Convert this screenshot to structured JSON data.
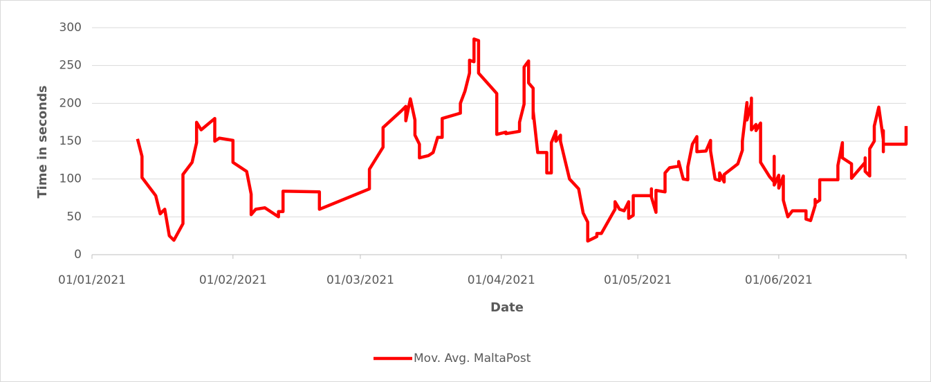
{
  "chart_data": {
    "type": "line",
    "y_label": "Time in seconds",
    "x_label": "Date",
    "xlim": [
      "01/01/2021",
      "29/06/2021"
    ],
    "xticks": [
      "01/01/2021",
      "01/02/2021",
      "01/03/2021",
      "01/04/2021",
      "01/05/2021",
      "01/06/2021"
    ],
    "ylim": [
      0,
      300
    ],
    "yticks": [
      0,
      50,
      100,
      150,
      200,
      250,
      300
    ],
    "grid": true,
    "legend": "bottom",
    "x": [
      "11/01/2021",
      "12/01/2021",
      "12/01/2021",
      "15/01/2021",
      "16/01/2021",
      "17/01/2021",
      "18/01/2021",
      "19/01/2021",
      "21/01/2021",
      "21/01/2021",
      "23/01/2021",
      "24/01/2021",
      "24/01/2021",
      "25/01/2021",
      "28/01/2021",
      "28/01/2021",
      "29/01/2021",
      "01/02/2021",
      "01/02/2021",
      "04/02/2021",
      "05/02/2021",
      "05/02/2021",
      "06/02/2021",
      "08/02/2021",
      "11/02/2021",
      "11/02/2021",
      "12/02/2021",
      "12/02/2021",
      "20/02/2021",
      "20/02/2021",
      "03/03/2021",
      "03/03/2021",
      "06/03/2021",
      "06/03/2021",
      "10/03/2021",
      "11/03/2021",
      "11/03/2021",
      "12/03/2021",
      "13/03/2021",
      "13/03/2021",
      "14/03/2021",
      "14/03/2021",
      "16/03/2021",
      "17/03/2021",
      "18/03/2021",
      "19/03/2021",
      "19/03/2021",
      "23/03/2021",
      "23/03/2021",
      "24/03/2021",
      "25/03/2021",
      "25/03/2021",
      "26/03/2021",
      "26/03/2021",
      "27/03/2021",
      "27/03/2021",
      "31/03/2021",
      "31/03/2021",
      "02/04/2021",
      "02/04/2021",
      "05/04/2021",
      "05/04/2021",
      "06/04/2021",
      "06/04/2021",
      "07/04/2021",
      "07/04/2021",
      "08/04/2021",
      "08/04/2021",
      "08/04/2021",
      "09/04/2021",
      "11/04/2021",
      "11/04/2021",
      "12/04/2021",
      "12/04/2021",
      "13/04/2021",
      "13/04/2021",
      "14/04/2021",
      "14/04/2021",
      "15/04/2021",
      "16/04/2021",
      "18/04/2021",
      "19/04/2021",
      "20/04/2021",
      "20/04/2021",
      "20/04/2021",
      "22/04/2021",
      "22/04/2021",
      "23/04/2021",
      "26/04/2021",
      "26/04/2021",
      "27/04/2021",
      "28/04/2021",
      "29/04/2021",
      "29/04/2021",
      "30/04/2021",
      "30/04/2021",
      "04/05/2021",
      "04/05/2021",
      "04/05/2021",
      "05/05/2021",
      "05/05/2021",
      "07/05/2021",
      "07/05/2021",
      "08/05/2021",
      "10/05/2021",
      "10/05/2021",
      "11/05/2021",
      "12/05/2021",
      "12/05/2021",
      "13/05/2021",
      "14/05/2021",
      "14/05/2021",
      "16/05/2021",
      "17/05/2021",
      "17/05/2021",
      "18/05/2021",
      "19/05/2021",
      "19/05/2021",
      "20/05/2021",
      "20/05/2021",
      "23/05/2021",
      "24/05/2021",
      "24/05/2021",
      "25/05/2021",
      "25/05/2021",
      "26/05/2021",
      "26/05/2021",
      "26/05/2021",
      "27/05/2021",
      "27/05/2021",
      "28/05/2021",
      "28/05/2021",
      "30/05/2021",
      "31/05/2021",
      "31/05/2021",
      "31/05/2021",
      "31/05/2021",
      "01/06/2021",
      "01/06/2021",
      "02/06/2021",
      "02/06/2021",
      "03/06/2021",
      "04/06/2021",
      "07/06/2021",
      "07/06/2021",
      "08/06/2021",
      "09/06/2021",
      "09/06/2021",
      "09/06/2021",
      "10/06/2021",
      "10/06/2021",
      "14/06/2021",
      "14/06/2021",
      "15/06/2021",
      "15/06/2021",
      "17/06/2021",
      "17/06/2021",
      "20/06/2021",
      "20/06/2021",
      "20/06/2021",
      "21/06/2021",
      "21/06/2021",
      "22/06/2021",
      "22/06/2021",
      "23/06/2021",
      "24/06/2021",
      "24/06/2021",
      "24/06/2021",
      "24/06/2021",
      "29/06/2021",
      "29/06/2021"
    ],
    "series": [
      {
        "name": "Mov. Avg. MaltaPost",
        "color": "#ff0000",
        "values": [
          153,
          130,
          102,
          78,
          54,
          60,
          25,
          19,
          41,
          106,
          122,
          148,
          175,
          165,
          180,
          150,
          154,
          151,
          122,
          110,
          80,
          53,
          60,
          62,
          50,
          57,
          57,
          84,
          83,
          60,
          87,
          113,
          142,
          168,
          190,
          196,
          177,
          206,
          178,
          158,
          146,
          128,
          131,
          135,
          155,
          155,
          180,
          187,
          200,
          216,
          240,
          257,
          255,
          285,
          283,
          240,
          213,
          159,
          162,
          160,
          163,
          175,
          199,
          248,
          256,
          227,
          220,
          180,
          190,
          135,
          135,
          108,
          108,
          148,
          163,
          150,
          158,
          150,
          125,
          100,
          87,
          55,
          43,
          42,
          18,
          24,
          28,
          28,
          60,
          70,
          60,
          58,
          70,
          48,
          52,
          78,
          78,
          87,
          76,
          56,
          85,
          83,
          108,
          115,
          117,
          123,
          100,
          99,
          116,
          146,
          156,
          136,
          137,
          151,
          137,
          100,
          98,
          108,
          96,
          106,
          120,
          138,
          150,
          201,
          178,
          200,
          207,
          165,
          172,
          164,
          174,
          122,
          103,
          96,
          130,
          118,
          92,
          105,
          88,
          104,
          72,
          50,
          58,
          58,
          47,
          45,
          65,
          73,
          68,
          72,
          99,
          99,
          118,
          148,
          128,
          120,
          101,
          122,
          128,
          110,
          104,
          140,
          150,
          170,
          195,
          152,
          136,
          164,
          146,
          146,
          170
        ]
      }
    ]
  }
}
